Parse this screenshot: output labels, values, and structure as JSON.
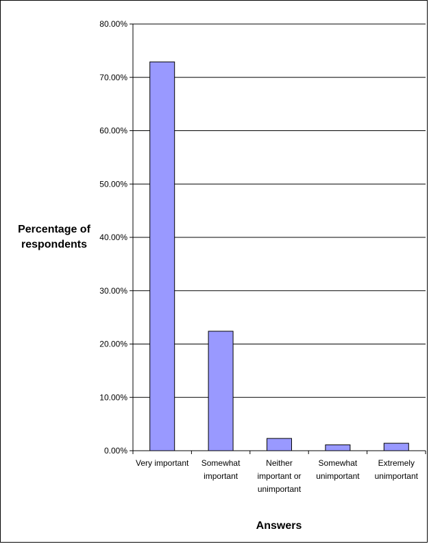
{
  "chart_data": {
    "type": "bar",
    "title": "",
    "xlabel": "Answers",
    "ylabel": "Percentage of respondents",
    "ylabel_lines": [
      "Percentage of",
      "respondents"
    ],
    "categories": [
      "Very important",
      "Somewhat important",
      "Neither important or unimportant",
      "Somewhat unimportant",
      "Extremely unimportant"
    ],
    "category_lines": [
      [
        "Very important"
      ],
      [
        "Somewhat",
        "important"
      ],
      [
        "Neither",
        "important or",
        "unimportant"
      ],
      [
        "Somewhat",
        "unimportant"
      ],
      [
        "Extremely",
        "unimportant"
      ]
    ],
    "values": [
      72.9,
      22.4,
      2.3,
      1.1,
      1.4
    ],
    "ylim": [
      0,
      80
    ],
    "yticks": [
      0,
      10,
      20,
      30,
      40,
      50,
      60,
      70,
      80
    ],
    "ytick_labels": [
      "0.00%",
      "10.00%",
      "20.00%",
      "30.00%",
      "40.00%",
      "50.00%",
      "60.00%",
      "70.00%",
      "80.00%"
    ],
    "grid": true,
    "legend": "none",
    "bar_color": "#9999ff",
    "bar_edge_color": "#000000",
    "grid_color": "#000000"
  }
}
